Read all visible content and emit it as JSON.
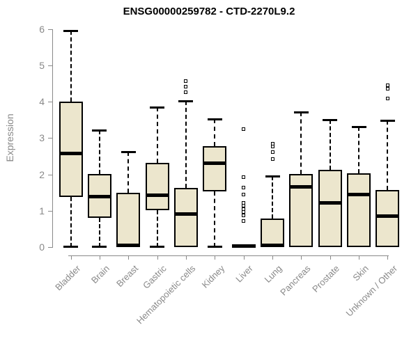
{
  "chart_data": {
    "type": "boxplot",
    "title": "ENSG00000259782 - CTD-2270L9.2",
    "ylabel": "Expression",
    "xlabel": "",
    "ylim": [
      0,
      6
    ],
    "y_ticks": [
      "0",
      "1",
      "2",
      "3",
      "4",
      "5",
      "6"
    ],
    "grid": false,
    "legend": false,
    "categories": [
      "Bladder",
      "Brain",
      "Breast",
      "Gastric",
      "Hematopoietic cells",
      "Kidney",
      "Liver",
      "Lung",
      "Pancreas",
      "Prostate",
      "Skin",
      "Unknown / Other"
    ],
    "series": [
      {
        "category": "Bladder",
        "whisker_low": 0,
        "q1": 1.38,
        "median": 2.57,
        "q3": 4.0,
        "whisker_high": 5.95,
        "outliers": []
      },
      {
        "category": "Brain",
        "whisker_low": 0,
        "q1": 0.8,
        "median": 1.38,
        "q3": 2.01,
        "whisker_high": 3.21,
        "outliers": []
      },
      {
        "category": "Breast",
        "whisker_low": 0,
        "q1": 0.0,
        "median": 0.04,
        "q3": 1.5,
        "whisker_high": 2.63,
        "outliers": []
      },
      {
        "category": "Gastric",
        "whisker_low": 0,
        "q1": 1.02,
        "median": 1.42,
        "q3": 2.31,
        "whisker_high": 3.84,
        "outliers": []
      },
      {
        "category": "Hematopoietic cells",
        "whisker_low": 0,
        "q1": 0.0,
        "median": 0.91,
        "q3": 1.63,
        "whisker_high": 4.02,
        "outliers": [
          4.57,
          4.42,
          4.25
        ]
      },
      {
        "category": "Kidney",
        "whisker_low": 0,
        "q1": 1.53,
        "median": 2.3,
        "q3": 2.78,
        "whisker_high": 3.53,
        "outliers": []
      },
      {
        "category": "Liver",
        "whisker_low": 0,
        "q1": 0.0,
        "median": 0.02,
        "q3": 0.06,
        "whisker_high": 0.06,
        "outliers": [
          3.25,
          1.93,
          1.63,
          1.45,
          1.21,
          1.13,
          1.05,
          0.96,
          0.87,
          0.71
        ]
      },
      {
        "category": "Lung",
        "whisker_low": 0,
        "q1": 0.0,
        "median": 0.04,
        "q3": 0.78,
        "whisker_high": 1.95,
        "outliers": [
          2.84,
          2.76,
          2.62,
          2.43
        ]
      },
      {
        "category": "Pancreas",
        "whisker_low": 0,
        "q1": 0.0,
        "median": 1.66,
        "q3": 2.01,
        "whisker_high": 3.72,
        "outliers": []
      },
      {
        "category": "Prostate",
        "whisker_low": 0,
        "q1": 0.0,
        "median": 1.22,
        "q3": 2.12,
        "whisker_high": 3.5,
        "outliers": []
      },
      {
        "category": "Skin",
        "whisker_low": 0,
        "q1": 0.0,
        "median": 1.44,
        "q3": 2.03,
        "whisker_high": 3.31,
        "outliers": []
      },
      {
        "category": "Unknown / Other",
        "whisker_low": 0,
        "q1": 0.0,
        "median": 0.85,
        "q3": 1.56,
        "whisker_high": 3.49,
        "outliers": [
          4.45,
          4.35,
          4.08
        ]
      }
    ],
    "style": {
      "box_fill": "#ece6cd",
      "box_stroke": "#000000",
      "median_color": "#000000",
      "axis_color": "#898989",
      "label_color": "#898989",
      "title_color": "#000000",
      "background": "#ffffff"
    }
  }
}
